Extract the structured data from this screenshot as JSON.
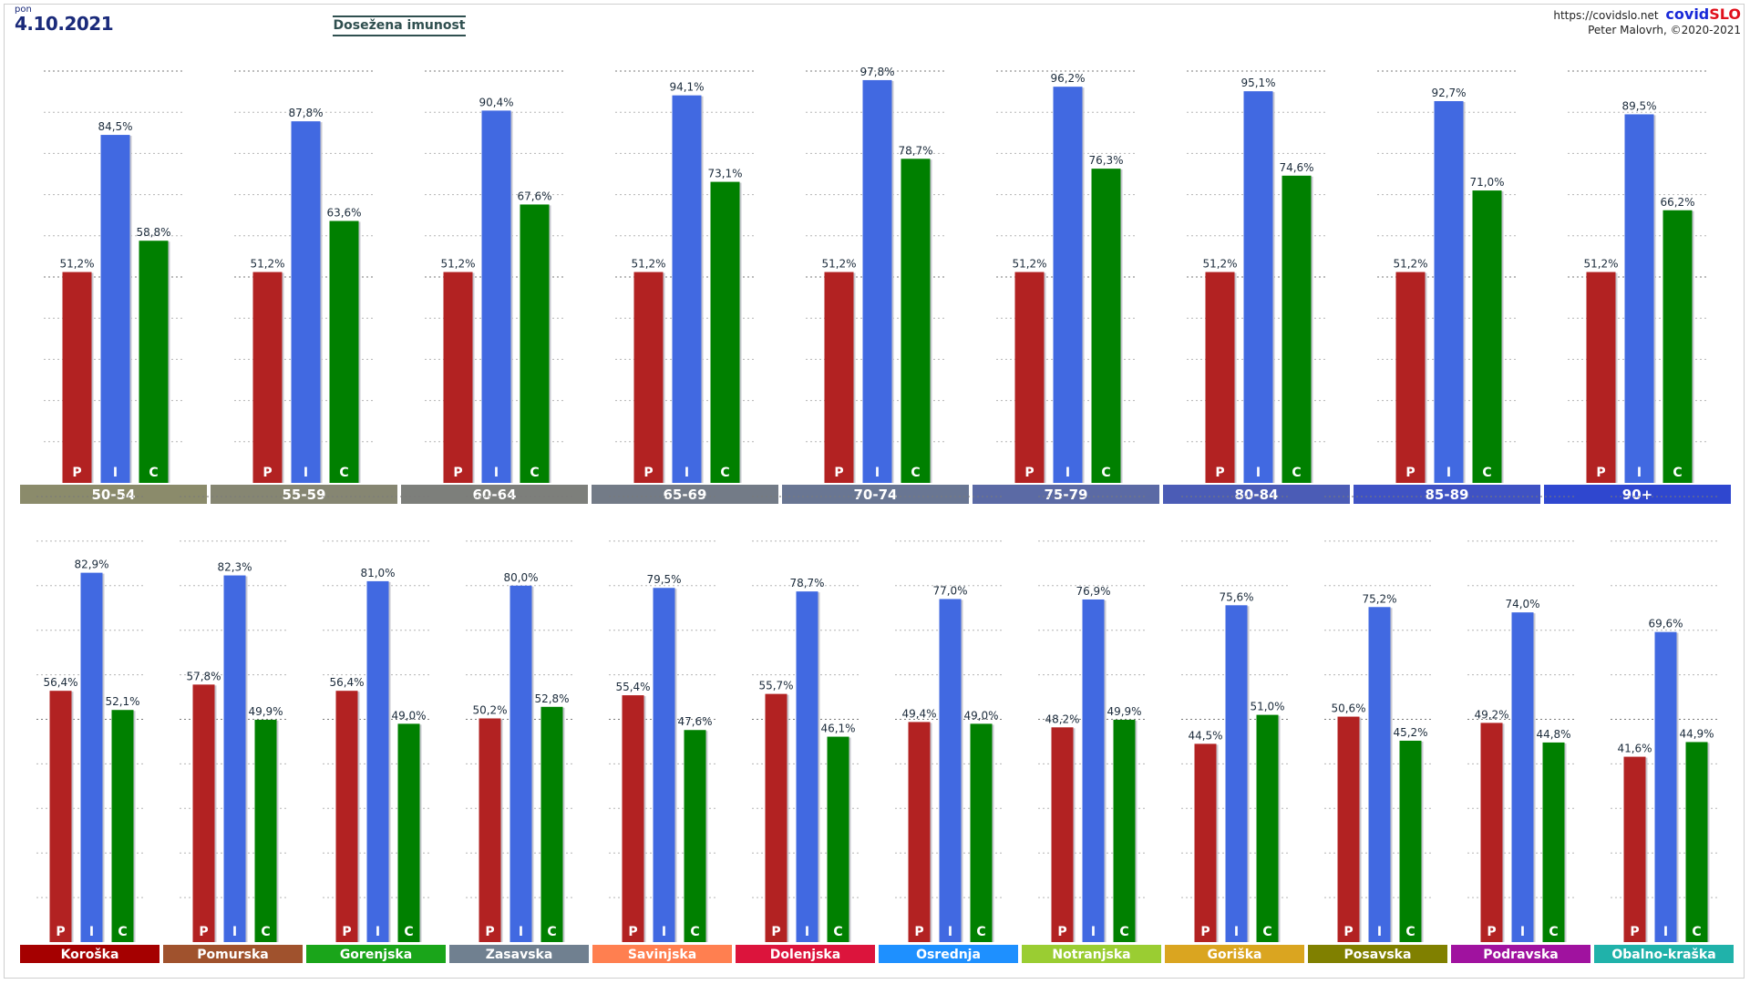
{
  "header": {
    "day": "pon",
    "date": "4.10.2021",
    "title": "Dosežena imunost",
    "url": "https://covidslo.net",
    "brand": "covid",
    "brand_accent": "SLO",
    "author": "Peter Malovrh, ©2020-2021"
  },
  "bar_letters": [
    "P",
    "I",
    "C"
  ],
  "colors": {
    "P": "#b22222",
    "I": "#4169e1",
    "C": "#008000"
  },
  "chart_data": [
    {
      "type": "bar",
      "ylim": [
        0,
        100
      ],
      "grid": true,
      "categories": [
        "50-54",
        "55-59",
        "60-64",
        "65-69",
        "70-74",
        "75-79",
        "80-84",
        "85-89",
        "90+"
      ],
      "category_colors": [
        "#8b8b6b",
        "#868672",
        "#7d7f7b",
        "#737b87",
        "#697693",
        "#5b6aa5",
        "#4b5cb6",
        "#3f52c4",
        "#2f47cf"
      ],
      "series": [
        {
          "name": "P",
          "values": [
            51.2,
            51.2,
            51.2,
            51.2,
            51.2,
            51.2,
            51.2,
            51.2,
            51.2
          ],
          "labels": [
            "51,2%",
            "51,2%",
            "51,2%",
            "51,2%",
            "51,2%",
            "51,2%",
            "51,2%",
            "51,2%",
            "51,2%"
          ]
        },
        {
          "name": "I",
          "values": [
            84.5,
            87.8,
            90.4,
            94.1,
            97.8,
            96.2,
            95.1,
            92.7,
            89.5
          ],
          "labels": [
            "84,5%",
            "87,8%",
            "90,4%",
            "94,1%",
            "97,8%",
            "96,2%",
            "95,1%",
            "92,7%",
            "89,5%"
          ]
        },
        {
          "name": "C",
          "values": [
            58.8,
            63.6,
            67.6,
            73.1,
            78.7,
            76.3,
            74.6,
            71.0,
            66.2
          ],
          "labels": [
            "58,8%",
            "63,6%",
            "67,6%",
            "73,1%",
            "78,7%",
            "76,3%",
            "74,6%",
            "71,0%",
            "66,2%"
          ]
        }
      ]
    },
    {
      "type": "bar",
      "ylim": [
        0,
        100
      ],
      "grid": true,
      "categories": [
        "Koroška",
        "Pomurska",
        "Gorenjska",
        "Zasavska",
        "Savinjska",
        "Dolenjska",
        "Osrednja",
        "Notranjska",
        "Goriška",
        "Posavska",
        "Podravska",
        "Obalno-kraška"
      ],
      "category_colors": [
        "#a50000",
        "#a0522d",
        "#1aa51a",
        "#708090",
        "#ff7f50",
        "#dc143c",
        "#1e90ff",
        "#9acd32",
        "#daa520",
        "#808000",
        "#a0129f",
        "#20b2aa"
      ],
      "series": [
        {
          "name": "P",
          "values": [
            56.4,
            57.8,
            56.4,
            50.2,
            55.4,
            55.7,
            49.4,
            48.2,
            44.5,
            50.6,
            49.2,
            41.6
          ],
          "labels": [
            "56,4%",
            "57,8%",
            "56,4%",
            "50,2%",
            "55,4%",
            "55,7%",
            "49,4%",
            "48,2%",
            "44,5%",
            "50,6%",
            "49,2%",
            "41,6%"
          ]
        },
        {
          "name": "I",
          "values": [
            82.9,
            82.3,
            81.0,
            80.0,
            79.5,
            78.7,
            77.0,
            76.9,
            75.6,
            75.2,
            74.0,
            69.6
          ],
          "labels": [
            "82,9%",
            "82,3%",
            "81,0%",
            "80,0%",
            "79,5%",
            "78,7%",
            "77,0%",
            "76,9%",
            "75,6%",
            "75,2%",
            "74,0%",
            "69,6%"
          ]
        },
        {
          "name": "C",
          "values": [
            52.1,
            49.9,
            49.0,
            52.8,
            47.6,
            46.1,
            49.0,
            49.9,
            51.0,
            45.2,
            44.8,
            44.9
          ],
          "labels": [
            "52,1%",
            "49,9%",
            "49,0%",
            "52,8%",
            "47,6%",
            "46,1%",
            "49,0%",
            "49,9%",
            "51,0%",
            "45,2%",
            "44,8%",
            "44,9%"
          ]
        }
      ]
    }
  ]
}
